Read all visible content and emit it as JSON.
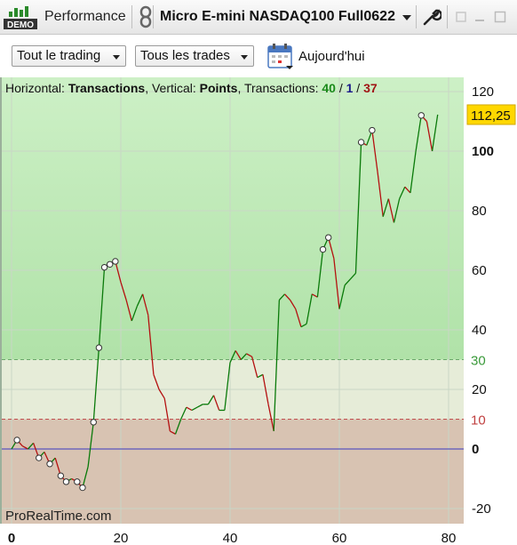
{
  "header": {
    "demo_badge": "DEMO",
    "performance_label": "Performance",
    "instrument_label": "Micro E-mini NASDAQ100 Full0622",
    "icons": [
      "demo-icon",
      "link-icon",
      "chevron-down-icon",
      "wrench-icon",
      "restore-icon",
      "minimize-icon",
      "maximize-icon"
    ]
  },
  "toolbar": {
    "filter_trading": "Tout le trading",
    "filter_trades": "Tous les trades",
    "date_label": "Aujourd'hui",
    "calendar_icon": "calendar-icon"
  },
  "chart_info": {
    "prefix": "Horizontal: ",
    "horizontal_value": "Transactions",
    "vertical_prefix": ", Vertical: ",
    "vertical_value": "Points",
    "transactions_prefix": ", Transactions: ",
    "wins": "40",
    "sep1": " / ",
    "neutral": "1",
    "sep2": " / ",
    "losses": "37"
  },
  "watermark": "ProRealTime.com",
  "chart_data": {
    "type": "line",
    "xlabel": "",
    "ylabel": "",
    "xlim": [
      0,
      83
    ],
    "ylim": [
      -25,
      125
    ],
    "x_ticks": [
      "0",
      "20",
      "40",
      "60",
      "80"
    ],
    "y_ticks": [
      "-20",
      "0",
      "20",
      "40",
      "60",
      "80",
      "100",
      "120"
    ],
    "y_ticks_bold": [
      "0",
      "100"
    ],
    "last_value_label": "112,25",
    "last_value": 112.25,
    "upper_threshold_label": "30",
    "upper_threshold": 30,
    "lower_threshold_label": "10",
    "lower_threshold": 10,
    "zero_line": 0,
    "grid": true,
    "colors": {
      "win": "#0a7a0a",
      "loss": "#b41010",
      "zone_top": "#cdf0c6",
      "zone_bottom_green": "#b0e2a8",
      "zone_mid": "#e6ecd8",
      "zone_low": "#d8c3b2",
      "zero_line": "#3a3ac0",
      "label_bg": "#ffd700"
    },
    "series": [
      {
        "x": [
          0,
          1,
          2,
          3,
          4,
          5,
          6,
          7,
          8,
          9,
          10,
          11,
          12,
          13,
          14,
          15,
          16,
          17,
          18,
          19,
          20,
          21,
          22,
          23,
          24,
          25,
          26,
          27,
          28,
          29,
          30,
          31,
          32,
          33,
          34,
          35,
          36,
          37,
          38,
          39,
          40,
          41,
          42,
          43,
          44,
          45,
          46,
          47,
          48,
          49,
          50,
          51,
          52,
          53,
          54,
          55,
          56,
          57,
          58,
          59,
          60,
          61,
          62,
          63,
          64,
          65,
          66,
          67,
          68,
          69,
          70,
          71,
          72,
          73,
          74,
          75,
          76,
          77,
          78
        ],
        "y": [
          0,
          3,
          1,
          0,
          2,
          -3,
          -1,
          -5,
          -3,
          -9,
          -11,
          -10,
          -11,
          -13,
          -6,
          9,
          34,
          61,
          62,
          63,
          56,
          50,
          43,
          48,
          52,
          45,
          25,
          20,
          17,
          6,
          5,
          10,
          14,
          13,
          14,
          15,
          15,
          18,
          13,
          13,
          29,
          33,
          30,
          32,
          31,
          24,
          25,
          15,
          6,
          50,
          52,
          50,
          47,
          41,
          42,
          52,
          51,
          67,
          71,
          64,
          47,
          55,
          57,
          59,
          103,
          102,
          107,
          93,
          78,
          84,
          76,
          84,
          88,
          86,
          100,
          112,
          110,
          100,
          112.25
        ],
        "markers": [
          1,
          5,
          7,
          9,
          10,
          12,
          13,
          15,
          16,
          17,
          18,
          19,
          57,
          58,
          64,
          66,
          75
        ]
      }
    ]
  }
}
